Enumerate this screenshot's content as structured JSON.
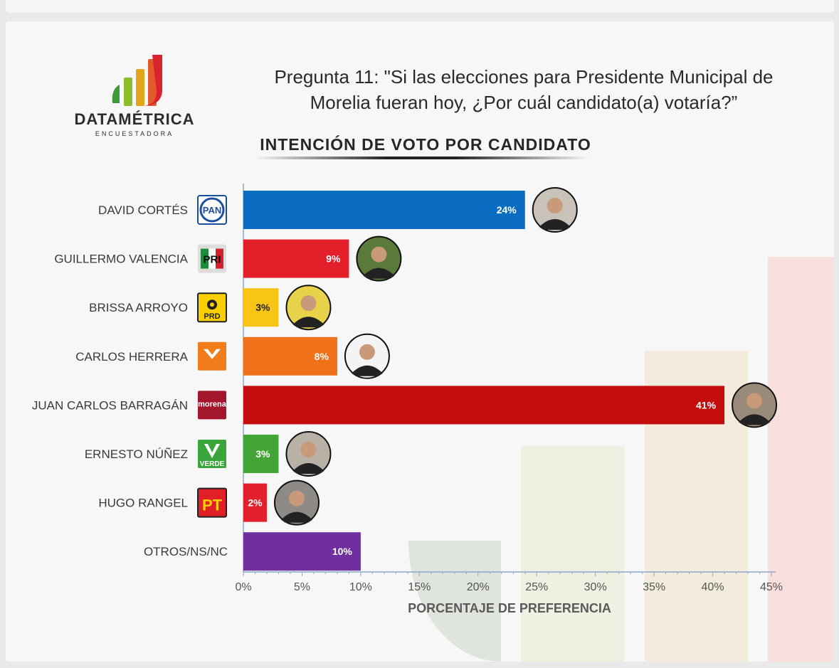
{
  "brand": {
    "name": "DATAMÉTRICA",
    "subtitle": "ENCUESTADORA"
  },
  "question": "Pregunta 11: \"Si las elecciones para Presidente Municipal de Morelia fueran hoy, ¿Por cuál candidato(a) votaría?”",
  "chart_data": {
    "type": "bar",
    "orientation": "horizontal",
    "title": "INTENCIÓN DE VOTO POR CANDIDATO",
    "xlabel": "PORCENTAJE DE PREFERENCIA",
    "ylabel": "",
    "xlim": [
      0,
      45
    ],
    "ticks": [
      "0%",
      "5%",
      "10%",
      "15%",
      "20%",
      "25%",
      "30%",
      "35%",
      "40%",
      "45%"
    ],
    "categories": [
      "DAVID CORTÉS",
      "GUILLERMO VALENCIA",
      "BRISSA ARROYO",
      "CARLOS HERRERA",
      "JUAN CARLOS BARRAGÁN",
      "ERNESTO NÚÑEZ",
      "HUGO RANGEL",
      "OTROS/NS/NC"
    ],
    "values": [
      24,
      9,
      3,
      8,
      41,
      3,
      2,
      10
    ],
    "value_labels": [
      "24%",
      "9%",
      "3%",
      "8%",
      "41%",
      "3%",
      "2%",
      "10%"
    ],
    "bar_colors": [
      "#0a6dc2",
      "#e3202a",
      "#f8c416",
      "#f0711a",
      "#c40e0e",
      "#43a535",
      "#e2202b",
      "#6f2f9f"
    ],
    "parties": [
      {
        "logo": "PAN",
        "icon": "pan-logo-icon"
      },
      {
        "logo": "PRI",
        "icon": "pri-logo-icon"
      },
      {
        "logo": "PRD",
        "icon": "prd-logo-icon"
      },
      {
        "logo": "",
        "icon": "mc-logo-icon"
      },
      {
        "logo": "morena",
        "icon": "morena-logo-icon"
      },
      {
        "logo": "VERDE",
        "icon": "verde-logo-icon"
      },
      {
        "logo": "PT",
        "icon": "pt-logo-icon"
      },
      null
    ],
    "has_candidate_photo": [
      true,
      true,
      true,
      true,
      true,
      true,
      true,
      false
    ],
    "grid": false,
    "legend": "none"
  }
}
